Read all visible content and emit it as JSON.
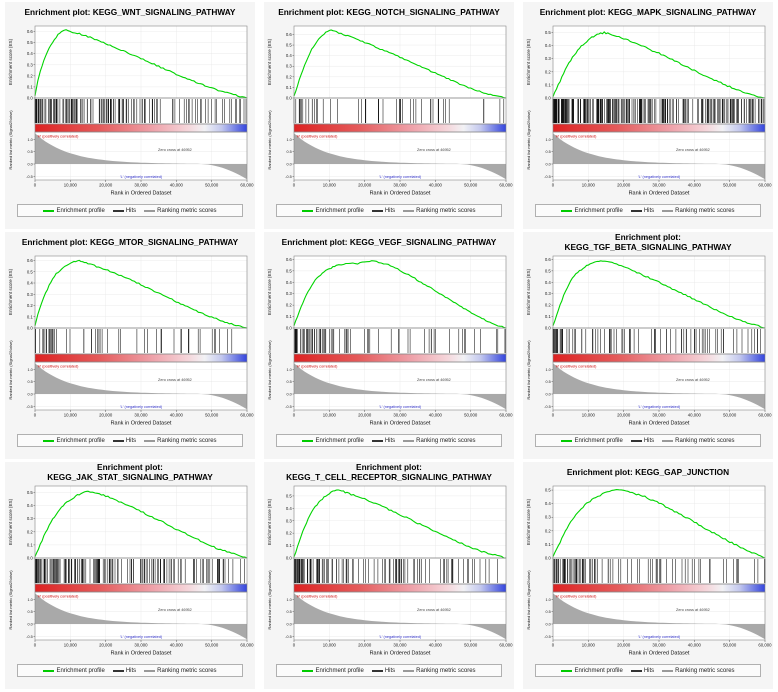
{
  "shared": {
    "xlabel": "Rank in Ordered Dataset",
    "ylabel_top": "Enrichment score (ES)",
    "ylabel_bottom": "Ranked list metric (Signal2Noise)",
    "x_ticks": [
      0,
      10000,
      20000,
      30000,
      40000,
      50000,
      60000
    ],
    "x_tick_labels": [
      "0",
      "10,000",
      "20,000",
      "30,000",
      "40,000",
      "50,000",
      "60,000"
    ],
    "x_max": 60000,
    "zero_cross": 46952,
    "zero_cross_label": "Zero cross at 46952",
    "pos_label": "'H' (positively correlated)",
    "neg_label": "'L' (negatively correlated)",
    "ranked_ticks": {
      "max": 1.3,
      "min": -0.65,
      "values": [
        1.0,
        0.5,
        0.0,
        -0.5
      ],
      "labels": [
        "1.0",
        "0.5",
        "0.0",
        "-0.5"
      ]
    },
    "legend": [
      {
        "label": "Enrichment profile",
        "color": "#00cc00"
      },
      {
        "label": "Hits",
        "color": "#333333"
      },
      {
        "label": "Ranking metric scores",
        "color": "#999999"
      }
    ],
    "colors": {
      "es_line": "#00d400",
      "hits": "#111111",
      "ranked_fill": "#a9a9a9",
      "pos_text": "#cc0000",
      "neg_text": "#3333cc",
      "zero_text": "#444444",
      "grid": "#e6e6e6",
      "panel_border": "#888888",
      "bar_stops": [
        [
          "0%",
          "#dd2222"
        ],
        [
          "30%",
          "#e45a5a"
        ],
        [
          "55%",
          "#eea0a8"
        ],
        [
          "72%",
          "#f5d5da"
        ],
        [
          "80%",
          "#f2f2f5"
        ],
        [
          "88%",
          "#c3c8ee"
        ],
        [
          "100%",
          "#3344dd"
        ]
      ]
    }
  },
  "chart_data": [
    {
      "type": "line",
      "title": "Enrichment plot: KEGG_WNT_SIGNALING_PATHWAY",
      "title_lines": [
        "Enrichment plot: KEGG_WNT_SIGNALING_PATHWAY"
      ],
      "es_ylim": [
        0,
        0.65
      ],
      "es_y_ticks": [
        0.0,
        0.1,
        0.2,
        0.3,
        0.4,
        0.5,
        0.6
      ],
      "es_y_tick_labels": [
        "0.0",
        "0.1",
        "0.2",
        "0.3",
        "0.4",
        "0.5",
        "0.6"
      ],
      "es_curve": [
        [
          0,
          0.02
        ],
        [
          800,
          0.15
        ],
        [
          1500,
          0.24
        ],
        [
          2500,
          0.34
        ],
        [
          3500,
          0.42
        ],
        [
          4500,
          0.48
        ],
        [
          5500,
          0.53
        ],
        [
          6500,
          0.57
        ],
        [
          7500,
          0.6
        ],
        [
          8800,
          0.615
        ],
        [
          10000,
          0.6
        ],
        [
          12000,
          0.585
        ],
        [
          15000,
          0.555
        ],
        [
          20000,
          0.49
        ],
        [
          25000,
          0.425
        ],
        [
          30000,
          0.355
        ],
        [
          35000,
          0.285
        ],
        [
          40000,
          0.215
        ],
        [
          45000,
          0.15
        ],
        [
          50000,
          0.09
        ],
        [
          55000,
          0.04
        ],
        [
          58000,
          0.015
        ],
        [
          60000,
          0.0
        ]
      ],
      "hits": {
        "count": 150,
        "seed": 11
      }
    },
    {
      "type": "line",
      "title": "Enrichment plot: KEGG_NOTCH_SIGNALING_PATHWAY",
      "title_lines": [
        "Enrichment plot: KEGG_NOTCH_SIGNALING_PATHWAY"
      ],
      "es_ylim": [
        0,
        0.68
      ],
      "es_y_ticks": [
        0.0,
        0.1,
        0.2,
        0.3,
        0.4,
        0.5,
        0.6
      ],
      "es_y_tick_labels": [
        "0.0",
        "0.1",
        "0.2",
        "0.3",
        "0.4",
        "0.5",
        "0.6"
      ],
      "es_curve": [
        [
          0,
          0.02
        ],
        [
          1000,
          0.12
        ],
        [
          2000,
          0.22
        ],
        [
          3000,
          0.31
        ],
        [
          4000,
          0.39
        ],
        [
          5000,
          0.46
        ],
        [
          6000,
          0.51
        ],
        [
          7000,
          0.555
        ],
        [
          8000,
          0.59
        ],
        [
          9000,
          0.62
        ],
        [
          10500,
          0.64
        ],
        [
          12000,
          0.625
        ],
        [
          14000,
          0.6
        ],
        [
          17000,
          0.565
        ],
        [
          20000,
          0.525
        ],
        [
          25000,
          0.455
        ],
        [
          30000,
          0.385
        ],
        [
          35000,
          0.31
        ],
        [
          40000,
          0.235
        ],
        [
          45000,
          0.16
        ],
        [
          50000,
          0.09
        ],
        [
          55000,
          0.035
        ],
        [
          60000,
          0.0
        ]
      ],
      "hits": {
        "count": 47,
        "seed": 23
      }
    },
    {
      "type": "line",
      "title": "Enrichment plot: KEGG_MAPK_SIGNALING_PATHWAY",
      "title_lines": [
        "Enrichment plot: KEGG_MAPK_SIGNALING_PATHWAY"
      ],
      "es_ylim": [
        0,
        0.55
      ],
      "es_y_ticks": [
        0.0,
        0.1,
        0.2,
        0.3,
        0.4,
        0.5
      ],
      "es_y_tick_labels": [
        "0.0",
        "0.1",
        "0.2",
        "0.3",
        "0.4",
        "0.5"
      ],
      "es_curve": [
        [
          0,
          0.01
        ],
        [
          1000,
          0.07
        ],
        [
          2000,
          0.13
        ],
        [
          3000,
          0.19
        ],
        [
          4000,
          0.245
        ],
        [
          5000,
          0.29
        ],
        [
          6000,
          0.33
        ],
        [
          7000,
          0.365
        ],
        [
          8000,
          0.395
        ],
        [
          9000,
          0.42
        ],
        [
          10000,
          0.445
        ],
        [
          11500,
          0.47
        ],
        [
          13000,
          0.49
        ],
        [
          14500,
          0.5
        ],
        [
          16000,
          0.49
        ],
        [
          18000,
          0.475
        ],
        [
          20000,
          0.455
        ],
        [
          25000,
          0.4
        ],
        [
          30000,
          0.34
        ],
        [
          35000,
          0.275
        ],
        [
          40000,
          0.21
        ],
        [
          45000,
          0.145
        ],
        [
          50000,
          0.085
        ],
        [
          55000,
          0.035
        ],
        [
          60000,
          0.0
        ]
      ],
      "hits": {
        "count": 267,
        "seed": 37
      }
    },
    {
      "type": "line",
      "title": "Enrichment plot: KEGG_MTOR_SIGNALING_PATHWAY",
      "title_lines": [
        "Enrichment plot: KEGG_MTOR_SIGNALING_PATHWAY"
      ],
      "es_ylim": [
        0,
        0.64
      ],
      "es_y_ticks": [
        0.0,
        0.1,
        0.2,
        0.3,
        0.4,
        0.5,
        0.6
      ],
      "es_y_tick_labels": [
        "0.0",
        "0.1",
        "0.2",
        "0.3",
        "0.4",
        "0.5",
        "0.6"
      ],
      "es_curve": [
        [
          0,
          0.02
        ],
        [
          800,
          0.12
        ],
        [
          1800,
          0.22
        ],
        [
          3000,
          0.31
        ],
        [
          4000,
          0.38
        ],
        [
          5000,
          0.44
        ],
        [
          6000,
          0.48
        ],
        [
          7500,
          0.525
        ],
        [
          9000,
          0.555
        ],
        [
          10500,
          0.58
        ],
        [
          12000,
          0.6
        ],
        [
          13500,
          0.59
        ],
        [
          15000,
          0.575
        ],
        [
          18000,
          0.54
        ],
        [
          20000,
          0.52
        ],
        [
          25000,
          0.455
        ],
        [
          30000,
          0.385
        ],
        [
          35000,
          0.31
        ],
        [
          40000,
          0.235
        ],
        [
          45000,
          0.16
        ],
        [
          50000,
          0.095
        ],
        [
          55000,
          0.04
        ],
        [
          60000,
          0.0
        ]
      ],
      "hits": {
        "count": 52,
        "seed": 41
      }
    },
    {
      "type": "line",
      "title": "Enrichment plot: KEGG_VEGF_SIGNALING_PATHWAY",
      "title_lines": [
        "Enrichment plot: KEGG_VEGF_SIGNALING_PATHWAY"
      ],
      "es_ylim": [
        0,
        0.63
      ],
      "es_y_ticks": [
        0.0,
        0.1,
        0.2,
        0.3,
        0.4,
        0.5,
        0.6
      ],
      "es_y_tick_labels": [
        "0.0",
        "0.1",
        "0.2",
        "0.3",
        "0.4",
        "0.5",
        "0.6"
      ],
      "es_curve": [
        [
          0,
          0.02
        ],
        [
          1000,
          0.1
        ],
        [
          2000,
          0.18
        ],
        [
          3000,
          0.255
        ],
        [
          4000,
          0.32
        ],
        [
          5000,
          0.375
        ],
        [
          6000,
          0.42
        ],
        [
          7500,
          0.465
        ],
        [
          9000,
          0.5
        ],
        [
          10500,
          0.525
        ],
        [
          12000,
          0.545
        ],
        [
          14000,
          0.56
        ],
        [
          16000,
          0.57
        ],
        [
          18000,
          0.565
        ],
        [
          20000,
          0.575
        ],
        [
          22000,
          0.585
        ],
        [
          24000,
          0.575
        ],
        [
          26000,
          0.56
        ],
        [
          28000,
          0.535
        ],
        [
          30000,
          0.505
        ],
        [
          33000,
          0.455
        ],
        [
          36000,
          0.4
        ],
        [
          40000,
          0.325
        ],
        [
          44000,
          0.25
        ],
        [
          48000,
          0.175
        ],
        [
          52000,
          0.1
        ],
        [
          56000,
          0.04
        ],
        [
          60000,
          0.0
        ]
      ],
      "hits": {
        "count": 76,
        "seed": 53
      }
    },
    {
      "type": "line",
      "title": "Enrichment plot: KEGG_TGF_BETA_SIGNALING_PATHWAY",
      "title_lines": [
        "Enrichment plot:",
        "KEGG_TGF_BETA_SIGNALING_PATHWAY"
      ],
      "es_ylim": [
        0,
        0.63
      ],
      "es_y_ticks": [
        0.0,
        0.1,
        0.2,
        0.3,
        0.4,
        0.5,
        0.6
      ],
      "es_y_tick_labels": [
        "0.0",
        "0.1",
        "0.2",
        "0.3",
        "0.4",
        "0.5",
        "0.6"
      ],
      "es_curve": [
        [
          0,
          0.02
        ],
        [
          1000,
          0.11
        ],
        [
          2000,
          0.2
        ],
        [
          3000,
          0.28
        ],
        [
          4000,
          0.35
        ],
        [
          5000,
          0.41
        ],
        [
          6000,
          0.455
        ],
        [
          7500,
          0.5
        ],
        [
          9000,
          0.535
        ],
        [
          10500,
          0.56
        ],
        [
          12500,
          0.58
        ],
        [
          14000,
          0.59
        ],
        [
          16000,
          0.58
        ],
        [
          18000,
          0.56
        ],
        [
          20000,
          0.535
        ],
        [
          25000,
          0.47
        ],
        [
          30000,
          0.4
        ],
        [
          35000,
          0.325
        ],
        [
          40000,
          0.25
        ],
        [
          45000,
          0.175
        ],
        [
          50000,
          0.105
        ],
        [
          55000,
          0.045
        ],
        [
          60000,
          0.0
        ]
      ],
      "hits": {
        "count": 86,
        "seed": 67
      }
    },
    {
      "type": "line",
      "title": "Enrichment plot: KEGG_JAK_STAT_SIGNALING_PATHWAY",
      "title_lines": [
        "Enrichment plot:",
        "KEGG_JAK_STAT_SIGNALING_PATHWAY"
      ],
      "es_ylim": [
        0,
        0.55
      ],
      "es_y_ticks": [
        0.0,
        0.1,
        0.2,
        0.3,
        0.4,
        0.5
      ],
      "es_y_tick_labels": [
        "0.0",
        "0.1",
        "0.2",
        "0.3",
        "0.4",
        "0.5"
      ],
      "es_curve": [
        [
          0,
          0.01
        ],
        [
          1000,
          0.07
        ],
        [
          2000,
          0.135
        ],
        [
          3000,
          0.195
        ],
        [
          4000,
          0.25
        ],
        [
          5000,
          0.295
        ],
        [
          6000,
          0.335
        ],
        [
          7500,
          0.385
        ],
        [
          9000,
          0.425
        ],
        [
          10500,
          0.455
        ],
        [
          12000,
          0.48
        ],
        [
          13500,
          0.5
        ],
        [
          15000,
          0.51
        ],
        [
          17000,
          0.5
        ],
        [
          20000,
          0.475
        ],
        [
          25000,
          0.42
        ],
        [
          30000,
          0.355
        ],
        [
          35000,
          0.29
        ],
        [
          40000,
          0.22
        ],
        [
          45000,
          0.155
        ],
        [
          50000,
          0.09
        ],
        [
          55000,
          0.04
        ],
        [
          60000,
          0.0
        ]
      ],
      "hits": {
        "count": 155,
        "seed": 71
      }
    },
    {
      "type": "line",
      "title": "Enrichment plot: KEGG_T_CELL_RECEPTOR_SIGNALING_PATHWAY",
      "title_lines": [
        "Enrichment plot:",
        "KEGG_T_CELL_RECEPTOR_SIGNALING_PATHWAY"
      ],
      "es_ylim": [
        0,
        0.58
      ],
      "es_y_ticks": [
        0.0,
        0.1,
        0.2,
        0.3,
        0.4,
        0.5
      ],
      "es_y_tick_labels": [
        "0.0",
        "0.1",
        "0.2",
        "0.3",
        "0.4",
        "0.5"
      ],
      "es_curve": [
        [
          0,
          0.01
        ],
        [
          1000,
          0.09
        ],
        [
          2000,
          0.175
        ],
        [
          3000,
          0.25
        ],
        [
          4000,
          0.315
        ],
        [
          5000,
          0.37
        ],
        [
          6000,
          0.415
        ],
        [
          7500,
          0.465
        ],
        [
          9000,
          0.5
        ],
        [
          10500,
          0.53
        ],
        [
          12000,
          0.55
        ],
        [
          13500,
          0.54
        ],
        [
          15000,
          0.525
        ],
        [
          18000,
          0.495
        ],
        [
          20000,
          0.475
        ],
        [
          25000,
          0.415
        ],
        [
          30000,
          0.35
        ],
        [
          35000,
          0.28
        ],
        [
          40000,
          0.215
        ],
        [
          45000,
          0.15
        ],
        [
          50000,
          0.085
        ],
        [
          55000,
          0.035
        ],
        [
          60000,
          0.0
        ]
      ],
      "hits": {
        "count": 108,
        "seed": 83
      }
    },
    {
      "type": "line",
      "title": "Enrichment plot: KEGG_GAP_JUNCTION",
      "title_lines": [
        "Enrichment plot: KEGG_GAP_JUNCTION"
      ],
      "es_ylim": [
        0,
        0.53
      ],
      "es_y_ticks": [
        0.0,
        0.1,
        0.2,
        0.3,
        0.4,
        0.5
      ],
      "es_y_tick_labels": [
        "0.0",
        "0.1",
        "0.2",
        "0.3",
        "0.4",
        "0.5"
      ],
      "es_curve": [
        [
          0,
          0.01
        ],
        [
          1000,
          0.06
        ],
        [
          2000,
          0.115
        ],
        [
          3000,
          0.17
        ],
        [
          4000,
          0.22
        ],
        [
          5000,
          0.265
        ],
        [
          6000,
          0.305
        ],
        [
          7500,
          0.35
        ],
        [
          9000,
          0.39
        ],
        [
          10500,
          0.42
        ],
        [
          12000,
          0.445
        ],
        [
          14000,
          0.47
        ],
        [
          16000,
          0.49
        ],
        [
          18000,
          0.5
        ],
        [
          20000,
          0.495
        ],
        [
          23000,
          0.475
        ],
        [
          26000,
          0.45
        ],
        [
          30000,
          0.405
        ],
        [
          35000,
          0.335
        ],
        [
          40000,
          0.265
        ],
        [
          45000,
          0.19
        ],
        [
          50000,
          0.12
        ],
        [
          55000,
          0.055
        ],
        [
          60000,
          0.0
        ]
      ],
      "hits": {
        "count": 90,
        "seed": 97
      }
    }
  ]
}
